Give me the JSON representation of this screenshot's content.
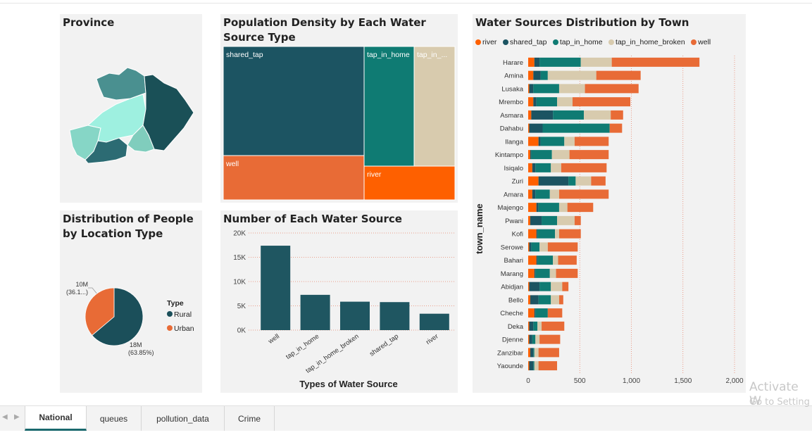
{
  "colors": {
    "river": "#fe6000",
    "shared_tap": "#1c5462",
    "tap_in_home": "#0f7b73",
    "tap_in_home_broken": "#d8cbae",
    "well": "#e86b36",
    "rural": "#1b4f5a",
    "urban": "#e86b36"
  },
  "province": {
    "title": "Province",
    "regions": [
      "region-west",
      "region-center",
      "region-north",
      "region-east",
      "region-south-west",
      "region-south"
    ]
  },
  "treemap": {
    "title": "Population Density by Each Water Source Type",
    "cells": [
      {
        "key": "shared_tap",
        "label": "shared_tap"
      },
      {
        "key": "tap_in_home",
        "label": "tap_in_home"
      },
      {
        "key": "tap_in_home_broken",
        "label": "tap_in_..."
      },
      {
        "key": "well",
        "label": "well"
      },
      {
        "key": "river",
        "label": "river"
      }
    ]
  },
  "town_chart": {
    "title": "Water Sources Distribution by Town",
    "legend": [
      "river",
      "shared_tap",
      "tap_in_home",
      "tap_in_home_broken",
      "well"
    ],
    "ylabel": "town_name",
    "xticks": [
      "0",
      "500",
      "1,000",
      "1,500",
      "2,000"
    ]
  },
  "pie": {
    "title": "Distribution of People by Location Type",
    "legend_title": "Type",
    "labels": {
      "urban_value": "10M",
      "urban_pct": "(36.1...)",
      "rural_value": "18M",
      "rural_pct": "(63.85%)"
    }
  },
  "bar": {
    "title": "Number of Each Water Source",
    "xlabel": "Types of Water Source",
    "yticks": [
      "0K",
      "5K",
      "10K",
      "15K",
      "20K"
    ]
  },
  "chart_data": [
    {
      "type": "bar",
      "orientation": "horizontal",
      "stacked": true,
      "title": "Water Sources Distribution by Town",
      "ylabel": "town_name",
      "xlim": [
        0,
        2000
      ],
      "legend_position": "top",
      "categories": [
        "Harare",
        "Amina",
        "Lusaka",
        "Mrembo",
        "Asmara",
        "Dahabu",
        "Ilanga",
        "Kintampo",
        "Isiqalo",
        "Zuri",
        "Amara",
        "Majengo",
        "Pwani",
        "Kofi",
        "Serowe",
        "Bahari",
        "Marang",
        "Abidjan",
        "Bello",
        "Cheche",
        "Deka",
        "Djenne",
        "Zanzibar",
        "Yaounde"
      ],
      "series": [
        {
          "name": "river",
          "values": [
            60,
            50,
            10,
            50,
            30,
            10,
            100,
            20,
            40,
            100,
            40,
            80,
            20,
            80,
            10,
            80,
            60,
            10,
            20,
            60,
            10,
            10,
            20,
            10
          ]
        },
        {
          "name": "shared_tap",
          "values": [
            50,
            70,
            40,
            30,
            210,
            130,
            20,
            10,
            30,
            290,
            30,
            20,
            110,
            10,
            20,
            10,
            10,
            100,
            80,
            10,
            40,
            30,
            30,
            40
          ]
        },
        {
          "name": "tap_in_home",
          "values": [
            400,
            70,
            250,
            200,
            300,
            650,
            230,
            200,
            150,
            70,
            140,
            200,
            150,
            170,
            80,
            150,
            140,
            110,
            120,
            120,
            40,
            30,
            10,
            10
          ]
        },
        {
          "name": "tap_in_home_broken",
          "values": [
            300,
            470,
            250,
            150,
            260,
            0,
            100,
            170,
            100,
            150,
            90,
            80,
            170,
            40,
            80,
            50,
            60,
            110,
            80,
            0,
            40,
            40,
            40,
            40
          ]
        },
        {
          "name": "well",
          "values": [
            850,
            430,
            520,
            560,
            120,
            120,
            330,
            380,
            440,
            140,
            480,
            250,
            60,
            210,
            290,
            180,
            210,
            60,
            40,
            140,
            220,
            200,
            200,
            180
          ]
        }
      ]
    },
    {
      "type": "bar",
      "title": "Number of Each Water Source",
      "xlabel": "Types of Water Source",
      "ylabel": "",
      "ylim": [
        0,
        20000
      ],
      "grid": true,
      "categories": [
        "well",
        "tap_in_home",
        "tap_in_home_broken",
        "shared_tap",
        "river"
      ],
      "values": [
        17383,
        7265,
        5856,
        5767,
        3379
      ]
    },
    {
      "type": "pie",
      "title": "Distribution of People by Location Type",
      "legend_title": "Type",
      "legend_position": "right",
      "categories": [
        "Rural",
        "Urban"
      ],
      "values": [
        63.85,
        36.15
      ],
      "value_labels": [
        "18M",
        "10M"
      ]
    },
    {
      "type": "treemap",
      "title": "Population Density by Each Water Source Type",
      "categories": [
        "shared_tap",
        "well",
        "tap_in_home",
        "tap_in_home_broken",
        "river"
      ],
      "values": [
        43,
        17,
        9,
        6,
        4
      ]
    }
  ],
  "tabs": [
    {
      "label": "National",
      "active": true
    },
    {
      "label": "queues",
      "active": false
    },
    {
      "label": "pollution_data",
      "active": false
    },
    {
      "label": "Crime",
      "active": false
    }
  ],
  "watermark": {
    "line1": "Activate W",
    "line2": "Go to Setting"
  }
}
